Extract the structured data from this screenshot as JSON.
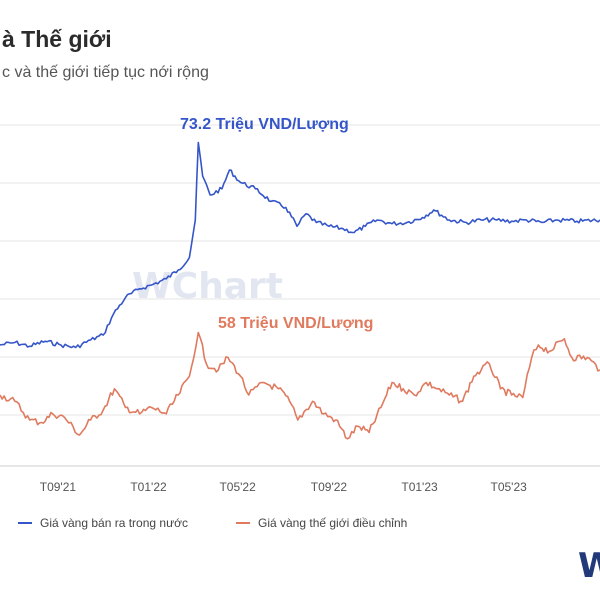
{
  "header": {
    "title": "à Thế giới",
    "subtitle": "c và thế giới tiếp tục nới rộng"
  },
  "watermark": "WChart",
  "brand_mark": "W",
  "colors": {
    "domestic": "#3556c9",
    "world": "#e07a5f",
    "grid": "#e6e6e6",
    "watermark": "#c9d3e6"
  },
  "legend": [
    {
      "label": "Giá vàng bán ra trong nước",
      "color": "#3556c9"
    },
    {
      "label": "Giá vàng thế giới điều chỉnh",
      "color": "#e07a5f"
    }
  ],
  "annotations": [
    {
      "text": "73.2 Triệu VND/Lượng",
      "color": "#3556c9"
    },
    {
      "text": "58 Triệu VND/Lượng",
      "color": "#e07a5f"
    }
  ],
  "chart_data": {
    "type": "line",
    "title": "",
    "xlabel": "",
    "ylabel": "",
    "x_ticks": [
      "T09'21",
      "T01'22",
      "T05'22",
      "T09'22",
      "T01'23",
      "T05'23"
    ],
    "x_range": [
      "2021-06-15",
      "2023-09-01"
    ],
    "y_range": [
      47,
      75
    ],
    "grid": "horizontal",
    "legend_position": "bottom",
    "series": [
      {
        "name": "Giá vàng bán ra trong nước",
        "color": "#3556c9",
        "points": [
          [
            "2021-06-15",
            57.0
          ],
          [
            "2021-07-05",
            57.2
          ],
          [
            "2021-07-25",
            56.9
          ],
          [
            "2021-08-15",
            57.3
          ],
          [
            "2021-09-05",
            57.0
          ],
          [
            "2021-09-25",
            56.8
          ],
          [
            "2021-10-15",
            57.4
          ],
          [
            "2021-11-01",
            57.8
          ],
          [
            "2021-11-15",
            59.5
          ],
          [
            "2021-12-01",
            60.8
          ],
          [
            "2021-12-20",
            61.5
          ],
          [
            "2022-01-05",
            61.8
          ],
          [
            "2022-01-25",
            62.3
          ],
          [
            "2022-02-10",
            63.0
          ],
          [
            "2022-02-25",
            64.0
          ],
          [
            "2022-03-05",
            67.0
          ],
          [
            "2022-03-09",
            73.2
          ],
          [
            "2022-03-15",
            70.5
          ],
          [
            "2022-03-25",
            69.0
          ],
          [
            "2022-04-10",
            69.5
          ],
          [
            "2022-04-20",
            71.0
          ],
          [
            "2022-05-05",
            70.0
          ],
          [
            "2022-05-25",
            69.5
          ],
          [
            "2022-06-15",
            68.5
          ],
          [
            "2022-07-05",
            68.0
          ],
          [
            "2022-07-20",
            66.5
          ],
          [
            "2022-08-01",
            67.5
          ],
          [
            "2022-08-15",
            66.8
          ],
          [
            "2022-09-01",
            66.5
          ],
          [
            "2022-09-20",
            66.3
          ],
          [
            "2022-10-05",
            66.0
          ],
          [
            "2022-10-20",
            66.5
          ],
          [
            "2022-11-05",
            67.0
          ],
          [
            "2022-11-25",
            66.7
          ],
          [
            "2022-12-15",
            66.8
          ],
          [
            "2023-01-05",
            67.2
          ],
          [
            "2023-01-20",
            67.8
          ],
          [
            "2023-02-10",
            67.0
          ],
          [
            "2023-03-05",
            66.8
          ],
          [
            "2023-03-25",
            67.0
          ],
          [
            "2023-04-15",
            67.0
          ],
          [
            "2023-05-05",
            66.9
          ],
          [
            "2023-05-25",
            67.0
          ],
          [
            "2023-06-15",
            66.8
          ],
          [
            "2023-07-05",
            67.0
          ],
          [
            "2023-08-01",
            66.9
          ],
          [
            "2023-09-01",
            67.0
          ]
        ]
      },
      {
        "name": "Giá vàng thế giới điều chỉnh",
        "color": "#e07a5f",
        "points": [
          [
            "2021-06-15",
            53.0
          ],
          [
            "2021-07-05",
            52.5
          ],
          [
            "2021-07-25",
            51.0
          ],
          [
            "2021-08-10",
            50.8
          ],
          [
            "2021-08-25",
            51.5
          ],
          [
            "2021-09-10",
            51.2
          ],
          [
            "2021-09-30",
            49.8
          ],
          [
            "2021-10-15",
            51.0
          ],
          [
            "2021-11-01",
            51.8
          ],
          [
            "2021-11-16",
            53.5
          ],
          [
            "2021-12-01",
            52.0
          ],
          [
            "2021-12-20",
            51.5
          ],
          [
            "2022-01-05",
            52.0
          ],
          [
            "2022-01-25",
            51.5
          ],
          [
            "2022-02-10",
            53.0
          ],
          [
            "2022-02-25",
            54.5
          ],
          [
            "2022-03-09",
            58.0
          ],
          [
            "2022-03-20",
            55.5
          ],
          [
            "2022-04-05",
            55.0
          ],
          [
            "2022-04-18",
            56.0
          ],
          [
            "2022-05-05",
            54.5
          ],
          [
            "2022-05-16",
            53.0
          ],
          [
            "2022-06-05",
            54.0
          ],
          [
            "2022-06-25",
            53.5
          ],
          [
            "2022-07-10",
            52.5
          ],
          [
            "2022-07-21",
            51.0
          ],
          [
            "2022-08-10",
            52.5
          ],
          [
            "2022-08-25",
            51.5
          ],
          [
            "2022-09-10",
            51.0
          ],
          [
            "2022-09-26",
            49.5
          ],
          [
            "2022-10-10",
            50.5
          ],
          [
            "2022-10-25",
            50.0
          ],
          [
            "2022-11-10",
            52.0
          ],
          [
            "2022-11-25",
            54.0
          ],
          [
            "2022-12-10",
            53.5
          ],
          [
            "2022-12-25",
            53.0
          ],
          [
            "2023-01-10",
            54.0
          ],
          [
            "2023-01-25",
            53.5
          ],
          [
            "2023-02-10",
            53.0
          ],
          [
            "2023-02-28",
            52.5
          ],
          [
            "2023-03-15",
            54.5
          ],
          [
            "2023-03-25",
            55.0
          ],
          [
            "2023-04-05",
            55.5
          ],
          [
            "2023-04-20",
            53.5
          ],
          [
            "2023-05-05",
            53.0
          ],
          [
            "2023-05-20",
            52.8
          ],
          [
            "2023-06-01",
            56.0
          ],
          [
            "2023-06-10",
            57.0
          ],
          [
            "2023-06-25",
            56.5
          ],
          [
            "2023-07-15",
            57.5
          ],
          [
            "2023-07-25",
            56.0
          ],
          [
            "2023-08-15",
            56.0
          ],
          [
            "2023-09-01",
            55.0
          ]
        ]
      }
    ]
  }
}
